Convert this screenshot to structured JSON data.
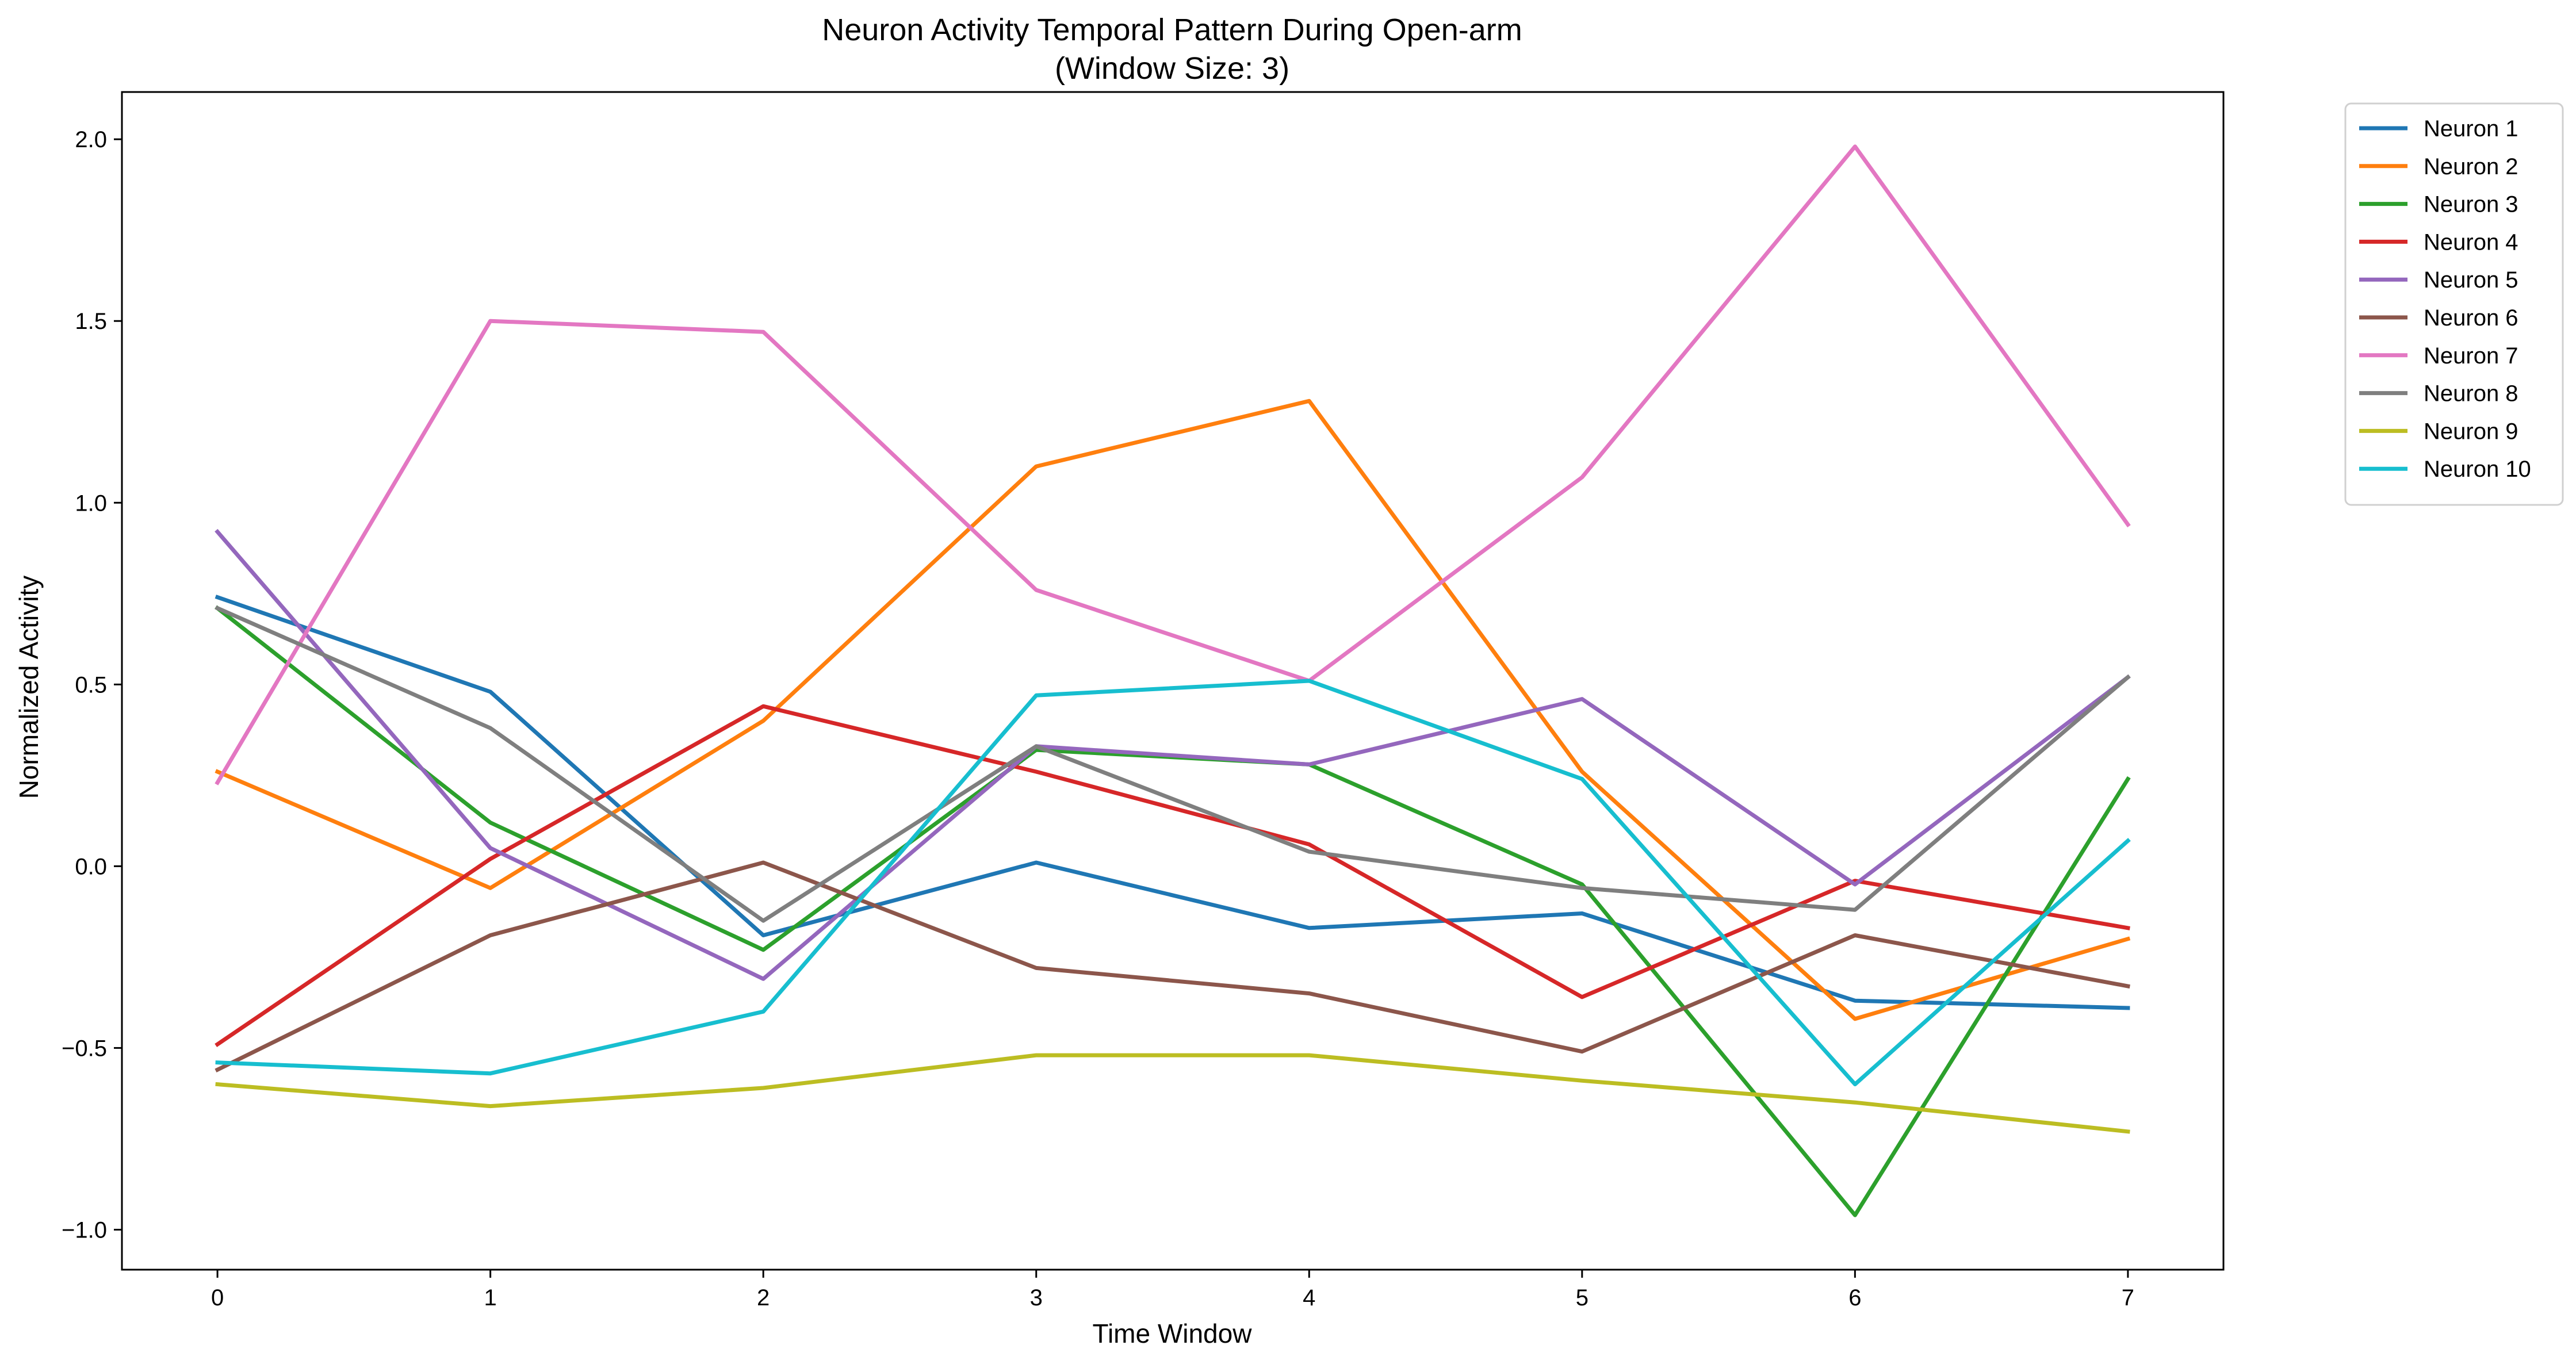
{
  "chart_data": {
    "type": "line",
    "title": "Neuron Activity Temporal Pattern During Open-arm",
    "subtitle": "(Window Size: 3)",
    "xlabel": "Time Window",
    "ylabel": "Normalized Activity",
    "x": [
      0,
      1,
      2,
      3,
      4,
      5,
      6,
      7
    ],
    "xlim": [
      -0.35,
      7.35
    ],
    "ylim": [
      -1.11,
      2.13
    ],
    "x_ticks": [
      0,
      1,
      2,
      3,
      4,
      5,
      6,
      7
    ],
    "x_tick_labels": [
      "0",
      "1",
      "2",
      "3",
      "4",
      "5",
      "6",
      "7"
    ],
    "y_ticks": [
      -1.0,
      -0.5,
      0.0,
      0.5,
      1.0,
      1.5,
      2.0
    ],
    "y_tick_labels": [
      "−1.0",
      "−0.5",
      "0.0",
      "0.5",
      "1.0",
      "1.5",
      "2.0"
    ],
    "grid": false,
    "legend_position": "outside-top-right",
    "series": [
      {
        "name": "Neuron 1",
        "color": "#1f77b4",
        "values": [
          0.74,
          0.48,
          -0.19,
          0.01,
          -0.17,
          -0.13,
          -0.37,
          -0.39
        ]
      },
      {
        "name": "Neuron 2",
        "color": "#ff7f0e",
        "values": [
          0.26,
          -0.06,
          0.4,
          1.1,
          1.28,
          0.26,
          -0.42,
          -0.2
        ]
      },
      {
        "name": "Neuron 3",
        "color": "#2ca02c",
        "values": [
          0.71,
          0.12,
          -0.23,
          0.32,
          0.28,
          -0.05,
          -0.96,
          0.24
        ]
      },
      {
        "name": "Neuron 4",
        "color": "#d62728",
        "values": [
          -0.49,
          0.02,
          0.44,
          0.26,
          0.06,
          -0.36,
          -0.04,
          -0.17
        ]
      },
      {
        "name": "Neuron 5",
        "color": "#9467bd",
        "values": [
          0.92,
          0.05,
          -0.31,
          0.33,
          0.28,
          0.46,
          -0.05,
          0.52
        ]
      },
      {
        "name": "Neuron 6",
        "color": "#8c564b",
        "values": [
          -0.56,
          -0.19,
          0.01,
          -0.28,
          -0.35,
          -0.51,
          -0.19,
          -0.33
        ]
      },
      {
        "name": "Neuron 7",
        "color": "#e377c2",
        "values": [
          0.23,
          1.5,
          1.47,
          0.76,
          0.51,
          1.07,
          1.98,
          0.94
        ]
      },
      {
        "name": "Neuron 8",
        "color": "#7f7f7f",
        "values": [
          0.71,
          0.38,
          -0.15,
          0.33,
          0.04,
          -0.06,
          -0.12,
          0.52
        ]
      },
      {
        "name": "Neuron 9",
        "color": "#bcbd22",
        "values": [
          -0.6,
          -0.66,
          -0.61,
          -0.52,
          -0.52,
          -0.59,
          -0.65,
          -0.73
        ]
      },
      {
        "name": "Neuron 10",
        "color": "#17becf",
        "values": [
          -0.54,
          -0.57,
          -0.4,
          0.47,
          0.51,
          0.24,
          -0.6,
          0.07
        ]
      }
    ]
  }
}
